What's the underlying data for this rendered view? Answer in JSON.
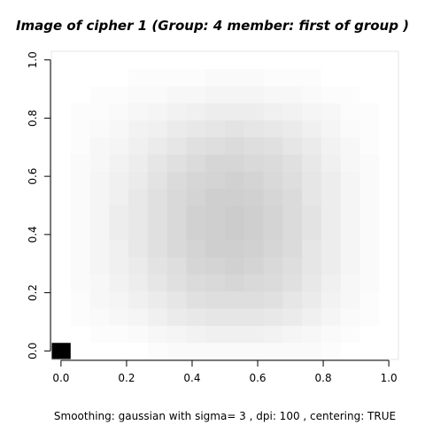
{
  "chart_data": {
    "type": "heatmap",
    "title": "Image of cipher  1 (Group:  4  member:  first of group )",
    "subtitle": "Smoothing:  gaussian with sigma= 3 , dpi: 100 , centering: TRUE",
    "xlabel": "",
    "ylabel": "",
    "xlim": [
      0.0,
      1.0
    ],
    "ylim": [
      0.0,
      1.0
    ],
    "x_ticks": [
      0.0,
      0.2,
      0.4,
      0.6,
      0.8,
      1.0
    ],
    "x_tick_labels": [
      "0.0",
      "0.2",
      "0.4",
      "0.6",
      "0.8",
      "1.0"
    ],
    "y_ticks": [
      0.0,
      0.2,
      0.4,
      0.6,
      0.8,
      1.0
    ],
    "y_tick_labels": [
      "0.0",
      "0.2",
      "0.4",
      "0.6",
      "0.8",
      "1.0"
    ],
    "grid": false,
    "colormap": "grayscale",
    "grid_size": [
      18,
      18
    ],
    "values": [
      [
        1.0,
        0.0,
        0.0,
        0.0,
        0.0,
        0.01,
        0.02,
        0.02,
        0.02,
        0.02,
        0.02,
        0.02,
        0.02,
        0.02,
        0.01,
        0.0,
        0.0,
        0.0
      ],
      [
        0.0,
        0.0,
        0.01,
        0.01,
        0.02,
        0.03,
        0.04,
        0.05,
        0.06,
        0.06,
        0.06,
        0.05,
        0.04,
        0.03,
        0.02,
        0.01,
        0.0,
        0.0
      ],
      [
        0.0,
        0.01,
        0.02,
        0.03,
        0.04,
        0.06,
        0.08,
        0.09,
        0.1,
        0.1,
        0.1,
        0.09,
        0.08,
        0.06,
        0.04,
        0.02,
        0.01,
        0.0
      ],
      [
        0.0,
        0.01,
        0.03,
        0.04,
        0.06,
        0.08,
        0.1,
        0.12,
        0.13,
        0.13,
        0.13,
        0.12,
        0.1,
        0.08,
        0.05,
        0.03,
        0.01,
        0.0
      ],
      [
        0.0,
        0.02,
        0.03,
        0.05,
        0.07,
        0.1,
        0.12,
        0.14,
        0.15,
        0.16,
        0.15,
        0.14,
        0.12,
        0.09,
        0.06,
        0.03,
        0.02,
        0.0
      ],
      [
        0.0,
        0.02,
        0.04,
        0.06,
        0.08,
        0.11,
        0.13,
        0.16,
        0.17,
        0.18,
        0.17,
        0.15,
        0.13,
        0.1,
        0.07,
        0.04,
        0.02,
        0.0
      ],
      [
        0.0,
        0.02,
        0.04,
        0.06,
        0.09,
        0.12,
        0.15,
        0.17,
        0.19,
        0.19,
        0.18,
        0.16,
        0.14,
        0.1,
        0.07,
        0.04,
        0.02,
        0.0
      ],
      [
        0.0,
        0.02,
        0.04,
        0.07,
        0.09,
        0.12,
        0.15,
        0.18,
        0.19,
        0.2,
        0.19,
        0.17,
        0.14,
        0.11,
        0.07,
        0.04,
        0.02,
        0.0
      ],
      [
        0.0,
        0.02,
        0.04,
        0.07,
        0.09,
        0.12,
        0.15,
        0.18,
        0.19,
        0.2,
        0.19,
        0.17,
        0.14,
        0.11,
        0.07,
        0.04,
        0.02,
        0.0
      ],
      [
        0.0,
        0.02,
        0.04,
        0.06,
        0.09,
        0.12,
        0.15,
        0.17,
        0.19,
        0.19,
        0.18,
        0.16,
        0.14,
        0.1,
        0.07,
        0.04,
        0.02,
        0.0
      ],
      [
        0.0,
        0.02,
        0.04,
        0.06,
        0.08,
        0.11,
        0.14,
        0.16,
        0.17,
        0.18,
        0.17,
        0.15,
        0.13,
        0.1,
        0.07,
        0.04,
        0.02,
        0.0
      ],
      [
        0.0,
        0.02,
        0.03,
        0.05,
        0.07,
        0.1,
        0.12,
        0.14,
        0.16,
        0.16,
        0.15,
        0.14,
        0.12,
        0.09,
        0.06,
        0.03,
        0.02,
        0.0
      ],
      [
        0.0,
        0.01,
        0.03,
        0.04,
        0.06,
        0.08,
        0.1,
        0.12,
        0.13,
        0.14,
        0.13,
        0.12,
        0.1,
        0.08,
        0.05,
        0.03,
        0.01,
        0.0
      ],
      [
        0.0,
        0.01,
        0.02,
        0.03,
        0.05,
        0.06,
        0.08,
        0.09,
        0.1,
        0.11,
        0.1,
        0.09,
        0.08,
        0.06,
        0.04,
        0.02,
        0.01,
        0.0
      ],
      [
        0.0,
        0.01,
        0.01,
        0.02,
        0.03,
        0.04,
        0.05,
        0.06,
        0.07,
        0.07,
        0.07,
        0.06,
        0.05,
        0.04,
        0.03,
        0.01,
        0.01,
        0.0
      ],
      [
        0.0,
        0.0,
        0.01,
        0.01,
        0.02,
        0.02,
        0.03,
        0.03,
        0.04,
        0.04,
        0.04,
        0.03,
        0.03,
        0.02,
        0.01,
        0.01,
        0.0,
        0.0
      ],
      [
        0.0,
        0.0,
        0.0,
        0.0,
        0.01,
        0.01,
        0.01,
        0.01,
        0.02,
        0.02,
        0.02,
        0.01,
        0.01,
        0.01,
        0.0,
        0.0,
        0.0,
        0.0
      ],
      [
        0.0,
        0.0,
        0.0,
        0.0,
        0.0,
        0.0,
        0.0,
        0.0,
        0.0,
        0.0,
        0.0,
        0.0,
        0.0,
        0.0,
        0.0,
        0.0,
        0.0,
        0.0
      ]
    ]
  }
}
